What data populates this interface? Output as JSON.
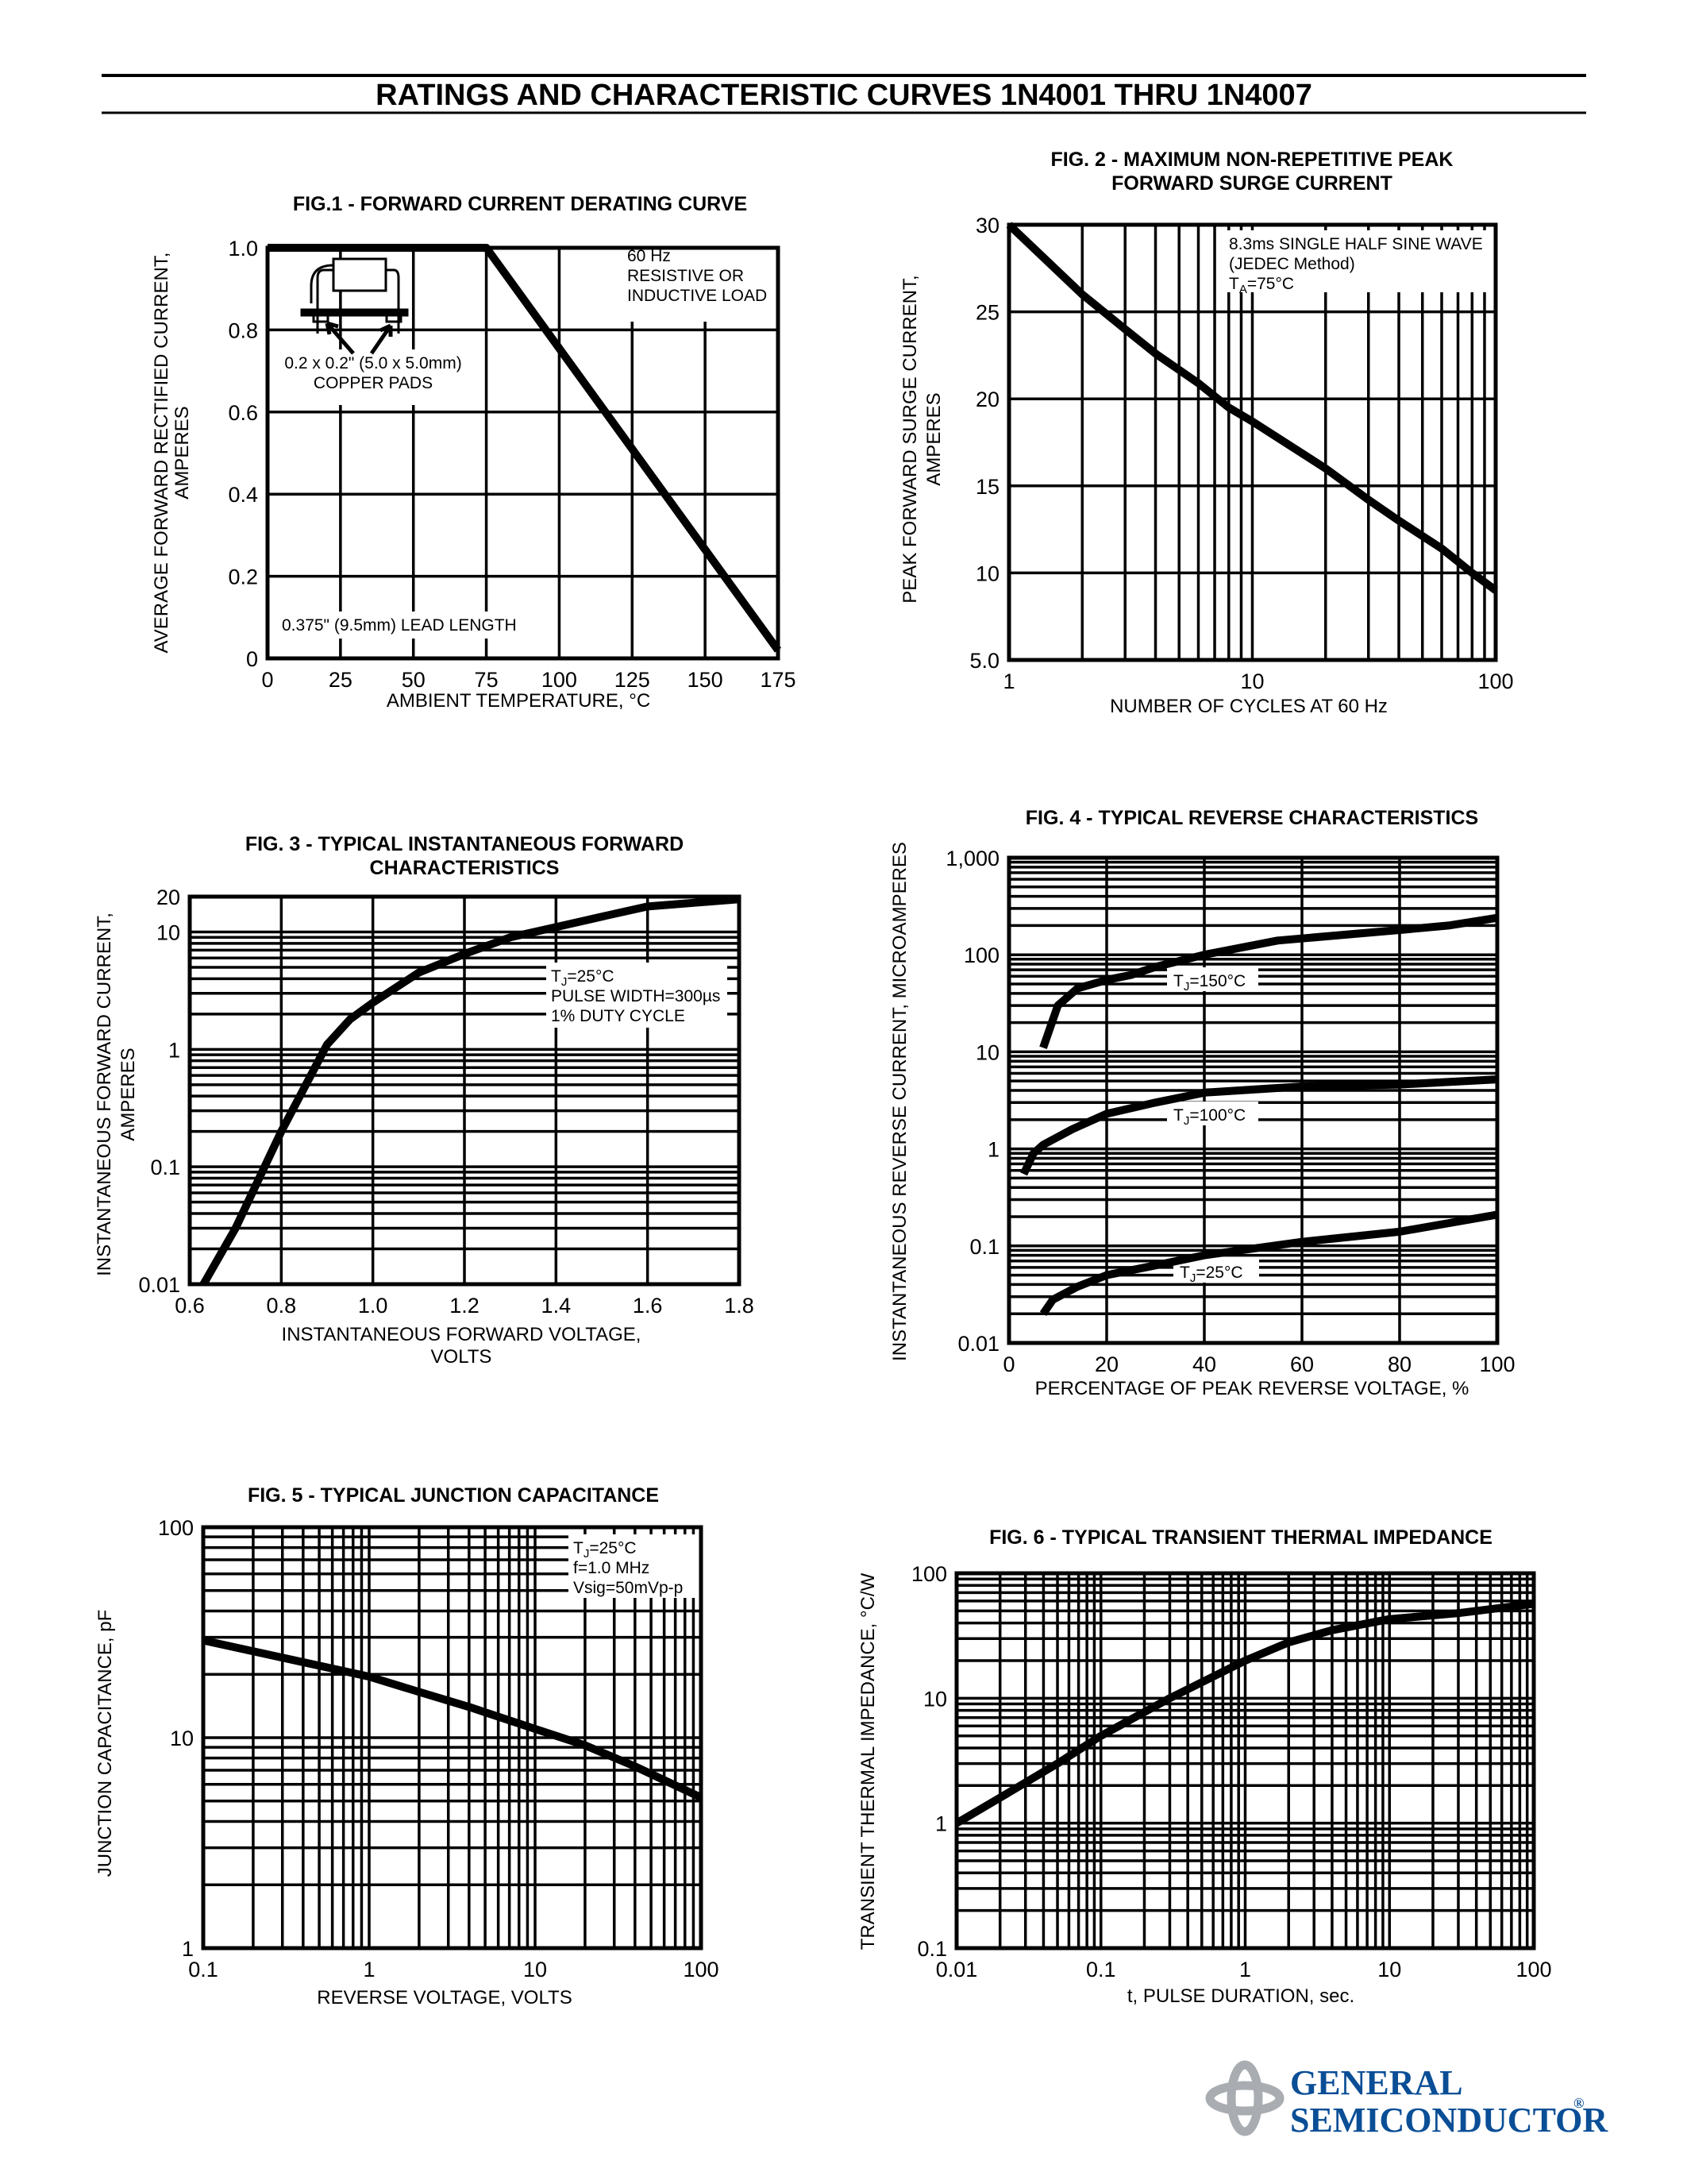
{
  "page_title": "RATINGS AND CHARACTERISTIC CURVES 1N4001 THRU 1N4007",
  "logo": {
    "line1": "GENERAL",
    "line2": "SEMICONDUCTOR",
    "mark": "®",
    "brand_color": "#0a4e96",
    "emblem_color": "#a9adb2"
  },
  "chart_data": [
    {
      "type": "line",
      "title": [
        "FIG.1 - FORWARD CURRENT DERATING CURVE"
      ],
      "xlabel": [
        "AMBIENT TEMPERATURE, °C"
      ],
      "ylabel": [
        "AVERAGE FORWARD RECTIFIED CURRENT,",
        "AMPERES"
      ],
      "xscale": "linear",
      "yscale": "linear",
      "xlim": [
        0,
        175
      ],
      "ylim": [
        0,
        1.0
      ],
      "x_ticks": [
        "0",
        "25",
        "50",
        "75",
        "100",
        "125",
        "150",
        "175"
      ],
      "y_ticks": [
        "0",
        "0.2",
        "0.4",
        "0.6",
        "0.8",
        "1.0"
      ],
      "grid": true,
      "annotations": [
        [
          "60 Hz",
          "RESISTIVE OR",
          "INDUCTIVE LOAD"
        ],
        [
          "0.2 x 0.2\" (5.0 x 5.0mm)",
          "COPPER PADS"
        ],
        [
          "0.375\" (9.5mm) LEAD LENGTH"
        ]
      ],
      "series": [
        {
          "points": [
            [
              0,
              1.0
            ],
            [
              75,
              1.0
            ],
            [
              175,
              0.02
            ]
          ]
        }
      ]
    },
    {
      "type": "line",
      "title": [
        "FIG. 2 - MAXIMUM NON-REPETITIVE PEAK",
        "FORWARD SURGE CURRENT"
      ],
      "xlabel": [
        "NUMBER OF CYCLES AT 60 Hz"
      ],
      "ylabel": [
        "PEAK FORWARD SURGE CURRENT,",
        "AMPERES"
      ],
      "xscale": "log",
      "yscale": "linear",
      "xlim": [
        1,
        100
      ],
      "ylim": [
        5,
        30
      ],
      "x_ticks": [
        "1",
        "10",
        "100"
      ],
      "y_ticks": [
        "5.0",
        "10",
        "15",
        "20",
        "25",
        "30"
      ],
      "grid": true,
      "annotations": [
        [
          "8.3ms SINGLE HALF SINE WAVE",
          "(JEDEC Method)",
          "TA=75°C"
        ]
      ],
      "series": [
        {
          "points": [
            [
              1,
              30
            ],
            [
              2,
              26
            ],
            [
              3,
              24
            ],
            [
              4,
              22.6
            ],
            [
              6,
              20.9
            ],
            [
              8,
              19.5
            ],
            [
              10,
              18.7
            ],
            [
              20,
              16
            ],
            [
              30,
              14.2
            ],
            [
              40,
              13
            ],
            [
              60,
              11.4
            ],
            [
              80,
              10
            ],
            [
              100,
              9
            ]
          ]
        }
      ]
    },
    {
      "type": "line",
      "title": [
        "FIG. 3 - TYPICAL INSTANTANEOUS FORWARD",
        "CHARACTERISTICS"
      ],
      "xlabel": [
        "INSTANTANEOUS FORWARD VOLTAGE,",
        "VOLTS"
      ],
      "ylabel": [
        "INSTANTANEOUS FORWARD CURRENT,",
        "AMPERES"
      ],
      "xscale": "linear",
      "yscale": "log",
      "xlim": [
        0.6,
        1.8
      ],
      "ylim": [
        0.01,
        20
      ],
      "x_ticks": [
        "0.6",
        "0.8",
        "1.0",
        "1.2",
        "1.4",
        "1.6",
        "1.8"
      ],
      "y_ticks": [
        "0.01",
        "0.1",
        "1",
        "10",
        "20"
      ],
      "grid": true,
      "annotations": [
        [
          "TJ=25°C",
          "PULSE WIDTH=300µs",
          "1% DUTY CYCLE"
        ]
      ],
      "series": [
        {
          "points": [
            [
              0.63,
              0.01
            ],
            [
              0.7,
              0.03
            ],
            [
              0.8,
              0.2
            ],
            [
              0.9,
              1.1
            ],
            [
              0.95,
              1.8
            ],
            [
              1.0,
              2.5
            ],
            [
              1.1,
              4.5
            ],
            [
              1.2,
              6.5
            ],
            [
              1.3,
              9
            ],
            [
              1.4,
              11
            ],
            [
              1.5,
              13.5
            ],
            [
              1.6,
              16.5
            ],
            [
              1.8,
              19
            ]
          ]
        }
      ]
    },
    {
      "type": "line",
      "title": [
        "FIG. 4 - TYPICAL REVERSE CHARACTERISTICS"
      ],
      "xlabel": [
        "PERCENTAGE OF PEAK REVERSE VOLTAGE, %"
      ],
      "ylabel": [
        "INSTANTANEOUS REVERSE CURRENT, MICROAMPERES"
      ],
      "xscale": "linear",
      "yscale": "log",
      "xlim": [
        0,
        100
      ],
      "ylim": [
        0.01,
        1000
      ],
      "x_ticks": [
        "0",
        "20",
        "40",
        "60",
        "80",
        "100"
      ],
      "y_ticks": [
        "0.01",
        "0.1",
        "1",
        "10",
        "100",
        "1,000"
      ],
      "grid": true,
      "annotations": [
        [
          "TJ=150°C"
        ],
        [
          "TJ=100°C"
        ],
        [
          "TJ=25°C"
        ]
      ],
      "series": [
        {
          "name": "TJ=150°C",
          "points": [
            [
              7,
              11
            ],
            [
              10,
              30
            ],
            [
              14,
              45
            ],
            [
              20,
              55
            ],
            [
              25,
              62
            ],
            [
              30,
              75
            ],
            [
              40,
              100
            ],
            [
              55,
              140
            ],
            [
              80,
              180
            ],
            [
              90,
              200
            ],
            [
              100,
              240
            ]
          ]
        },
        {
          "name": "TJ=100°C",
          "points": [
            [
              3,
              0.55
            ],
            [
              5,
              0.9
            ],
            [
              7,
              1.1
            ],
            [
              13,
              1.6
            ],
            [
              20,
              2.3
            ],
            [
              30,
              3
            ],
            [
              40,
              3.8
            ],
            [
              60,
              4.4
            ],
            [
              80,
              4.6
            ],
            [
              100,
              5.2
            ]
          ]
        },
        {
          "name": "TJ=25°C",
          "points": [
            [
              7,
              0.02
            ],
            [
              9,
              0.028
            ],
            [
              14,
              0.038
            ],
            [
              20,
              0.05
            ],
            [
              30,
              0.063
            ],
            [
              40,
              0.08
            ],
            [
              60,
              0.11
            ],
            [
              80,
              0.14
            ],
            [
              100,
              0.21
            ]
          ]
        }
      ]
    },
    {
      "type": "line",
      "title": [
        "FIG. 5 - TYPICAL JUNCTION CAPACITANCE"
      ],
      "xlabel": [
        "REVERSE VOLTAGE, VOLTS"
      ],
      "ylabel": [
        "JUNCTION CAPACITANCE, pF"
      ],
      "xscale": "log",
      "yscale": "log",
      "xlim": [
        0.1,
        100
      ],
      "ylim": [
        1,
        100
      ],
      "x_ticks": [
        "0.1",
        "1",
        "10",
        "100"
      ],
      "y_ticks": [
        "1",
        "10",
        "100"
      ],
      "grid": true,
      "annotations": [
        [
          "TJ=25°C",
          "f=1.0 MHz",
          "Vsig=50mVp-p"
        ]
      ],
      "series": [
        {
          "points": [
            [
              0.1,
              29
            ],
            [
              0.3,
              24
            ],
            [
              1,
              19.5
            ],
            [
              2,
              16.5
            ],
            [
              4,
              14
            ],
            [
              10,
              11
            ],
            [
              20,
              9.2
            ],
            [
              40,
              7.3
            ],
            [
              100,
              5.2
            ]
          ]
        }
      ]
    },
    {
      "type": "line",
      "title": [
        "FIG. 6 - TYPICAL TRANSIENT THERMAL IMPEDANCE"
      ],
      "xlabel": [
        "t, PULSE DURATION, sec."
      ],
      "ylabel": [
        "TRANSIENT THERMAL IMPEDANCE, °C/W"
      ],
      "xscale": "log",
      "yscale": "log",
      "xlim": [
        0.01,
        100
      ],
      "ylim": [
        0.1,
        100
      ],
      "x_ticks": [
        "0.01",
        "0.1",
        "1",
        "10",
        "100"
      ],
      "y_ticks": [
        "0.1",
        "1",
        "10",
        "100"
      ],
      "grid": true,
      "annotations": [],
      "series": [
        {
          "points": [
            [
              0.01,
              1
            ],
            [
              0.02,
              1.6
            ],
            [
              0.05,
              3
            ],
            [
              0.1,
              5
            ],
            [
              0.3,
              10
            ],
            [
              1,
              20
            ],
            [
              2,
              28
            ],
            [
              4,
              35
            ],
            [
              10,
              43
            ],
            [
              30,
              48
            ],
            [
              100,
              57
            ]
          ]
        }
      ]
    }
  ]
}
